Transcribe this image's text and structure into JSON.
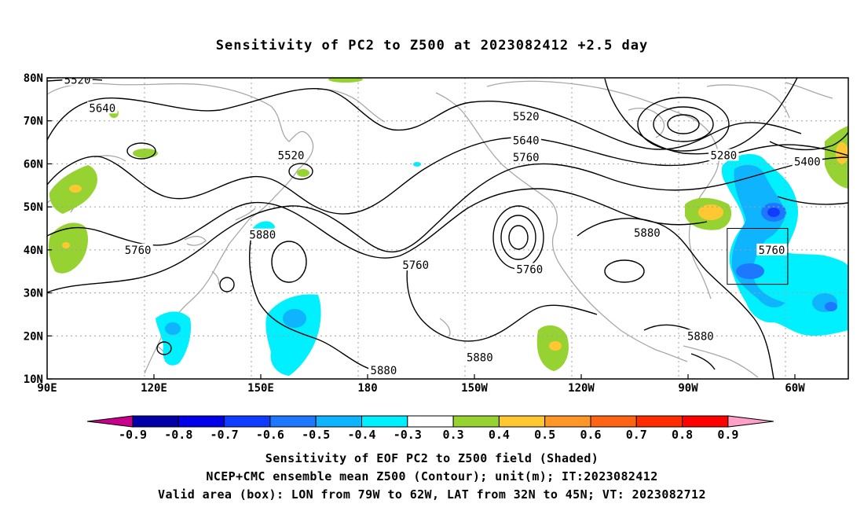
{
  "title": "Sensitivity of PC2 to Z500 at 2023082412 +2.5 day",
  "map": {
    "lon_labels": [
      "90E",
      "120E",
      "150E",
      "180",
      "150W",
      "120W",
      "90W",
      "60W"
    ],
    "lat_labels": [
      "80N",
      "70N",
      "60N",
      "50N",
      "40N",
      "30N",
      "20N",
      "10N"
    ],
    "contour_labels": [
      {
        "text": "5520",
        "lon": 98.5,
        "lat": 79.5
      },
      {
        "text": "5640",
        "lon": 105.5,
        "lat": 73
      },
      {
        "text": "5520",
        "lon": 158.5,
        "lat": 62
      },
      {
        "text": "5520",
        "lon": 224.5,
        "lat": 71
      },
      {
        "text": "5640",
        "lon": 224.5,
        "lat": 65.5
      },
      {
        "text": "5760",
        "lon": 224.5,
        "lat": 61.5
      },
      {
        "text": "5280",
        "lon": 280,
        "lat": 62
      },
      {
        "text": "5400",
        "lon": 303.5,
        "lat": 60.5
      },
      {
        "text": "5880",
        "lon": 150.5,
        "lat": 43.5
      },
      {
        "text": "5760",
        "lon": 115.5,
        "lat": 40
      },
      {
        "text": "5760",
        "lon": 193.5,
        "lat": 36.5
      },
      {
        "text": "5760",
        "lon": 225.5,
        "lat": 35.5
      },
      {
        "text": "5880",
        "lon": 258.5,
        "lat": 44
      },
      {
        "text": "5760",
        "lon": 293.5,
        "lat": 40
      },
      {
        "text": "5880",
        "lon": 273.5,
        "lat": 20
      },
      {
        "text": "5880",
        "lon": 211.5,
        "lat": 15
      },
      {
        "text": "5880",
        "lon": 184.5,
        "lat": 12
      }
    ],
    "valid_box": {
      "lon_west": 281,
      "lon_east": 298,
      "lat_south": 32,
      "lat_north": 45
    }
  },
  "colorbar": {
    "labels": [
      "-0.9",
      "-0.8",
      "-0.7",
      "-0.6",
      "-0.5",
      "-0.4",
      "-0.3",
      "0.3",
      "0.4",
      "0.5",
      "0.6",
      "0.7",
      "0.8",
      "0.9"
    ],
    "colors": [
      "#0000a8",
      "#0000e8",
      "#0f3cff",
      "#1e78ff",
      "#0fb4ff",
      "#00f0ff",
      "#ffffff",
      "#96d232",
      "#ffc832",
      "#ff9628",
      "#ff6414",
      "#ff2d00",
      "#ff0000"
    ],
    "low_color": "#c8008c",
    "high_color": "#ffa0c8"
  },
  "footer": {
    "line1": "Sensitivity of EOF PC2 to Z500 field (Shaded)",
    "line2": "NCEP+CMC ensemble mean Z500 (Contour); unit(m); IT:2023082412",
    "line3": "Valid area (box): LON from 79W to 62W, LAT from 32N to 45N; VT: 2023082712"
  }
}
